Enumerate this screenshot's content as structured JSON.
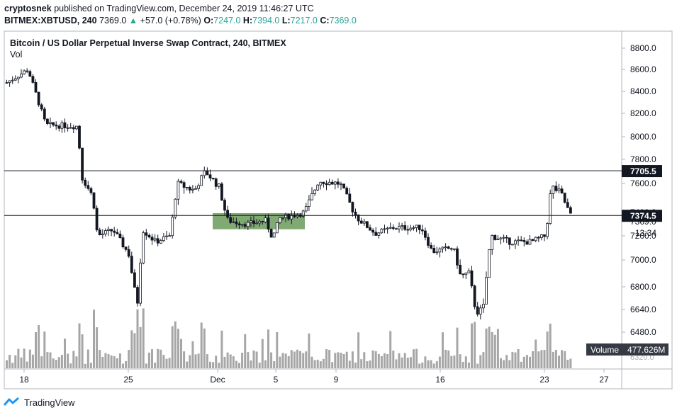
{
  "header": {
    "author": "cryptosnek",
    "published_text": "published on TradingView.com, December 24, 2019 11:46:27 UTC",
    "symbol": "BITMEX:XBTUSD, 240",
    "last": "7369.0",
    "change_arrow": "▲",
    "change": "+57.0 (+0.78%)",
    "open_label": "O:",
    "open": "7247.0",
    "high_label": "H:",
    "high": "7394.0",
    "low_label": "L:",
    "low": "7217.0",
    "close_label": "C:",
    "close": "7369.0"
  },
  "pane": {
    "title": "Bitcoin / US Dollar Perpetual Inverse Swap Contract, 240, BITMEX",
    "vol_label": "Vol"
  },
  "colors": {
    "candle": "#131722",
    "volume": "#a6a6a6",
    "zone": "#6b9a5b",
    "accent_green": "#26a69a",
    "badge": "#131722"
  },
  "price_axis": {
    "ticks": [
      "8800.0",
      "8600.0",
      "8400.0",
      "8200.0",
      "8000.0",
      "7800.0",
      "7600.0",
      "7400.0",
      "7200.0",
      "7000.0",
      "6800.0",
      "6640.0",
      "6480.0"
    ],
    "level_upper": "7705.5",
    "level_lower": "7374.5",
    "current_price": "7369.0",
    "countdown": "13:34",
    "volume_label": "Volume",
    "volume_value": "477.626M",
    "partial_tick": "6320.0"
  },
  "time_axis": {
    "ticks": [
      "18",
      "25",
      "Dec",
      "5",
      "9",
      "16",
      "23",
      "27"
    ]
  },
  "chart_data": {
    "type": "candlestick",
    "title": "Bitcoin / US Dollar Perpetual Inverse Swap Contract, 240, BITMEX",
    "yticks": [
      8800,
      8600,
      8400,
      8200,
      8000,
      7800,
      7600,
      7400,
      7200,
      7000,
      6800,
      6640,
      6480
    ],
    "horizontal_levels": [
      7705.5,
      7374.5
    ],
    "zone": {
      "from": "Dec 1",
      "to": "Dec 7",
      "low": 7250,
      "high": 7400
    },
    "price_path": [
      {
        "x": 0,
        "p": 8480
      },
      {
        "x": 30,
        "p": 8600
      },
      {
        "x": 45,
        "p": 8300
      },
      {
        "x": 55,
        "p": 8100
      },
      {
        "x": 100,
        "p": 8090
      },
      {
        "x": 106,
        "p": 7650
      },
      {
        "x": 122,
        "p": 7500
      },
      {
        "x": 128,
        "p": 7200
      },
      {
        "x": 150,
        "p": 7250
      },
      {
        "x": 172,
        "p": 7050
      },
      {
        "x": 184,
        "p": 6660
      },
      {
        "x": 192,
        "p": 7250
      },
      {
        "x": 210,
        "p": 7150
      },
      {
        "x": 230,
        "p": 7200
      },
      {
        "x": 240,
        "p": 7600
      },
      {
        "x": 265,
        "p": 7550
      },
      {
        "x": 280,
        "p": 7700
      },
      {
        "x": 300,
        "p": 7570
      },
      {
        "x": 312,
        "p": 7330
      },
      {
        "x": 340,
        "p": 7300
      },
      {
        "x": 365,
        "p": 7330
      },
      {
        "x": 375,
        "p": 7180
      },
      {
        "x": 385,
        "p": 7350
      },
      {
        "x": 420,
        "p": 7400
      },
      {
        "x": 440,
        "p": 7620
      },
      {
        "x": 470,
        "p": 7600
      },
      {
        "x": 495,
        "p": 7350
      },
      {
        "x": 520,
        "p": 7220
      },
      {
        "x": 545,
        "p": 7270
      },
      {
        "x": 585,
        "p": 7270
      },
      {
        "x": 600,
        "p": 7070
      },
      {
        "x": 630,
        "p": 7100
      },
      {
        "x": 640,
        "p": 6880
      },
      {
        "x": 652,
        "p": 6900
      },
      {
        "x": 662,
        "p": 6620
      },
      {
        "x": 672,
        "p": 6640
      },
      {
        "x": 683,
        "p": 7200
      },
      {
        "x": 710,
        "p": 7150
      },
      {
        "x": 740,
        "p": 7150
      },
      {
        "x": 760,
        "p": 7200
      },
      {
        "x": 768,
        "p": 7580
      },
      {
        "x": 782,
        "p": 7530
      },
      {
        "x": 796,
        "p": 7369
      }
    ]
  }
}
